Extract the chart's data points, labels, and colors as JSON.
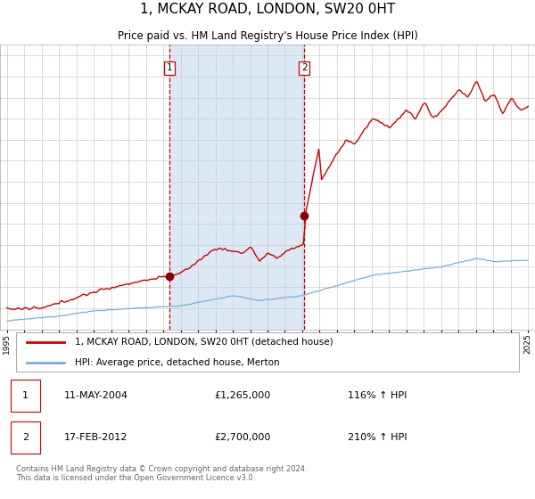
{
  "title": "1, MCKAY ROAD, LONDON, SW20 0HT",
  "subtitle": "Price paid vs. HM Land Registry's House Price Index (HPI)",
  "legend_line1": "1, MCKAY ROAD, LONDON, SW20 0HT (detached house)",
  "legend_line2": "HPI: Average price, detached house, Merton",
  "sale1_date": "11-MAY-2004",
  "sale1_price": "£1,265,000",
  "sale1_hpi": "116% ↑ HPI",
  "sale2_date": "17-FEB-2012",
  "sale2_price": "£2,700,000",
  "sale2_hpi": "210% ↑ HPI",
  "footer": "Contains HM Land Registry data © Crown copyright and database right 2024.\nThis data is licensed under the Open Government Licence v3.0.",
  "price_color": "#cc0000",
  "hpi_color": "#7aaed6",
  "sale_dot_color": "#880000",
  "vline_color": "#cc0000",
  "span_color": "#dce9f5",
  "ylim": [
    0,
    6750000
  ],
  "sale1_x": 2004.36,
  "sale1_y": 1265000,
  "sale2_x": 2012.12,
  "sale2_y": 2700000,
  "xmin": 1995,
  "xmax": 2025
}
